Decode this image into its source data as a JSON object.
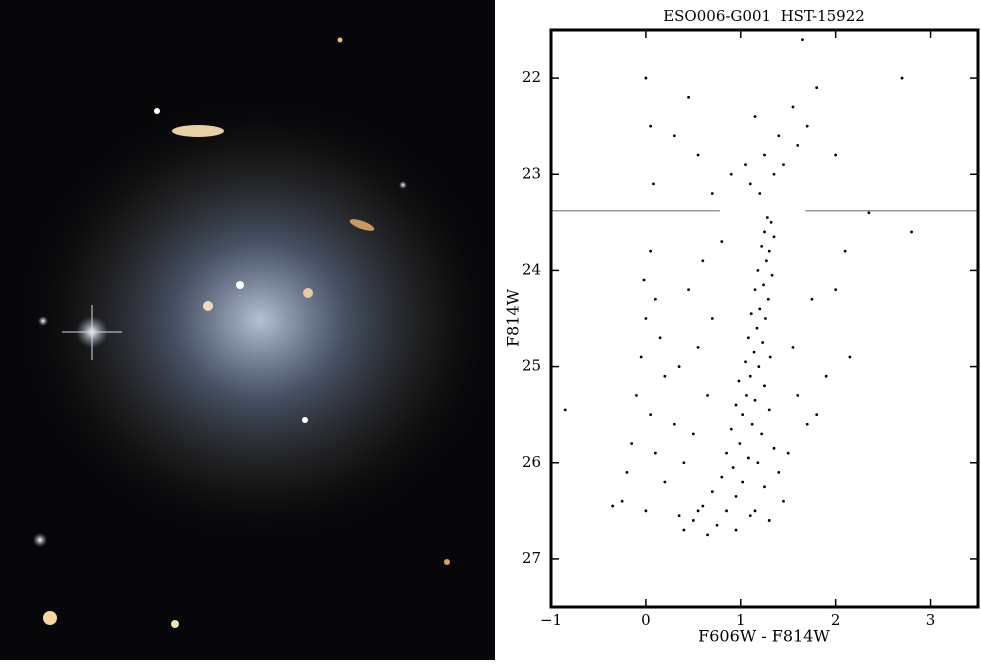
{
  "chart_data": {
    "type": "scatter",
    "title": "ESO006-G001  HST-15922",
    "xlabel": "F606W - F814W",
    "ylabel": "F814W",
    "xlim": [
      -1,
      3.5
    ],
    "ylim": [
      27.5,
      21.5
    ],
    "xticks": [
      {
        "value": -1,
        "label": "−1"
      },
      0,
      1,
      2,
      3
    ],
    "yticks": [
      22,
      23,
      24,
      25,
      26,
      27
    ],
    "color": "#000000",
    "hline": {
      "y": 23.38,
      "color": "#777777",
      "segments": [
        [
          -1,
          0.78
        ],
        [
          1.68,
          3.5
        ]
      ]
    },
    "x": [
      1.28,
      1.32,
      1.25,
      1.35,
      1.22,
      1.3,
      1.27,
      1.18,
      1.33,
      1.24,
      1.15,
      1.29,
      1.2,
      1.11,
      1.26,
      1.17,
      1.08,
      1.23,
      1.14,
      1.31,
      1.05,
      1.19,
      1.1,
      0.98,
      1.25,
      1.06,
      1.15,
      0.95,
      1.3,
      1.02,
      1.12,
      0.9,
      1.22,
      0.99,
      1.35,
      0.85,
      1.08,
      1.18,
      0.92,
      1.4,
      0.8,
      1.02,
      1.25,
      0.7,
      0.95,
      1.45,
      0.6,
      0.85,
      1.1,
      0.5,
      0.75,
      1.3,
      0.4,
      0.65,
      0.95,
      1.15,
      0.55,
      0.35,
      0.05,
      -0.02,
      0.1,
      0.0,
      0.15,
      -0.05,
      0.2,
      -0.1,
      0.05,
      0.3,
      -0.15,
      0.1,
      0.4,
      -0.2,
      0.2,
      -0.25,
      0.0,
      -0.35,
      0.45,
      0.55,
      0.65,
      0.35,
      0.7,
      0.6,
      0.8,
      0.5,
      1.55,
      1.6,
      1.7,
      1.8,
      1.5,
      1.75,
      2.0,
      2.15,
      1.9,
      2.1,
      2.35,
      2.8,
      1.2,
      1.35,
      1.1,
      1.45,
      1.25,
      1.6,
      1.05,
      1.4,
      1.7,
      0.9,
      1.55,
      1.8,
      1.15,
      2.0,
      0.7,
      0.05,
      0.0,
      0.3,
      0.55,
      1.65,
      2.7,
      0.08,
      0.45,
      -0.85
    ],
    "values": [
      23.45,
      23.5,
      23.6,
      23.65,
      23.75,
      23.8,
      23.9,
      24.0,
      24.05,
      24.15,
      24.2,
      24.3,
      24.4,
      24.45,
      24.5,
      24.6,
      24.7,
      24.75,
      24.85,
      24.9,
      24.95,
      25.0,
      25.1,
      25.15,
      25.2,
      25.3,
      25.35,
      25.4,
      25.45,
      25.5,
      25.6,
      25.65,
      25.7,
      25.8,
      25.85,
      25.9,
      25.95,
      26.0,
      26.05,
      26.1,
      26.15,
      26.2,
      26.25,
      26.3,
      26.35,
      26.4,
      26.45,
      26.5,
      26.55,
      26.6,
      26.65,
      26.6,
      26.7,
      26.75,
      26.7,
      26.5,
      26.5,
      26.55,
      23.8,
      24.1,
      24.3,
      24.5,
      24.7,
      24.9,
      25.1,
      25.3,
      25.5,
      25.6,
      25.8,
      25.9,
      26.0,
      26.1,
      26.2,
      26.4,
      26.5,
      26.45,
      24.2,
      24.8,
      25.3,
      25.0,
      24.5,
      23.9,
      23.7,
      25.7,
      24.8,
      25.3,
      25.6,
      25.5,
      25.9,
      24.3,
      24.2,
      24.9,
      25.1,
      23.8,
      23.4,
      23.6,
      23.2,
      23.0,
      23.1,
      22.9,
      22.8,
      22.7,
      22.9,
      22.6,
      22.5,
      23.0,
      22.3,
      22.1,
      22.4,
      22.8,
      23.2,
      22.5,
      22.0,
      22.6,
      22.8,
      21.6,
      22.0,
      23.1,
      22.2,
      25.45
    ]
  }
}
